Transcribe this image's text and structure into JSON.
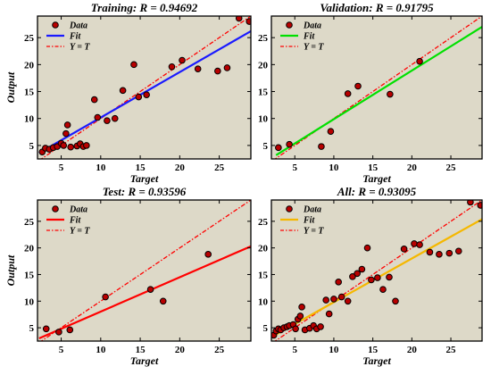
{
  "chart_data": [
    {
      "type": "scatter",
      "title": "Training: R = 0.94692",
      "xlabel": "Target",
      "ylabel": "Output",
      "xlim": [
        2,
        29
      ],
      "ylim": [
        2.5,
        29
      ],
      "xticks": [
        5,
        10,
        15,
        20,
        25
      ],
      "yticks": [
        5,
        10,
        15,
        20,
        25
      ],
      "grid": false,
      "legend_position": "top-left",
      "legend": [
        "Data",
        "Fit",
        "Y = T"
      ],
      "fit_color": "#1a1aff",
      "fit_line": [
        [
          2.2,
          3.6
        ],
        [
          29,
          26.2
        ]
      ],
      "identity_line": [
        [
          2.2,
          2.2
        ],
        [
          29,
          29
        ]
      ],
      "points": [
        [
          2.6,
          3.8
        ],
        [
          3.0,
          4.5
        ],
        [
          3.5,
          4.3
        ],
        [
          4.0,
          4.6
        ],
        [
          4.5,
          4.8
        ],
        [
          5.0,
          5.4
        ],
        [
          5.3,
          5.0
        ],
        [
          5.6,
          7.2
        ],
        [
          5.8,
          8.8
        ],
        [
          6.2,
          4.7
        ],
        [
          7.0,
          4.9
        ],
        [
          7.4,
          5.3
        ],
        [
          7.8,
          4.8
        ],
        [
          8.2,
          5.0
        ],
        [
          9.2,
          13.5
        ],
        [
          9.6,
          10.2
        ],
        [
          10.8,
          9.6
        ],
        [
          11.8,
          10.0
        ],
        [
          12.8,
          15.2
        ],
        [
          14.2,
          20.0
        ],
        [
          14.8,
          14.0
        ],
        [
          15.8,
          14.4
        ],
        [
          19.0,
          19.6
        ],
        [
          20.3,
          20.8
        ],
        [
          22.3,
          19.2
        ],
        [
          24.8,
          18.8
        ],
        [
          26.0,
          19.4
        ],
        [
          27.5,
          28.6
        ],
        [
          28.8,
          28.0
        ]
      ]
    },
    {
      "type": "scatter",
      "title": "Validation: R = 0.91795",
      "xlabel": "Target",
      "ylabel": "",
      "xlim": [
        2,
        29
      ],
      "ylim": [
        2.5,
        29
      ],
      "xticks": [
        5,
        10,
        15,
        20,
        25
      ],
      "yticks": [
        5,
        10,
        15,
        20,
        25
      ],
      "grid": false,
      "legend_position": "top-left",
      "legend": [
        "Data",
        "Fit",
        "Y = T"
      ],
      "fit_color": "#00e000",
      "fit_line": [
        [
          2.6,
          3.2
        ],
        [
          29,
          27.0
        ]
      ],
      "identity_line": [
        [
          2.2,
          2.2
        ],
        [
          29,
          29
        ]
      ],
      "points": [
        [
          2.9,
          4.6
        ],
        [
          4.3,
          5.2
        ],
        [
          8.4,
          4.8
        ],
        [
          9.6,
          7.6
        ],
        [
          11.8,
          14.6
        ],
        [
          13.1,
          16.0
        ],
        [
          17.2,
          14.5
        ],
        [
          21.0,
          20.6
        ]
      ]
    },
    {
      "type": "scatter",
      "title": "Test: R = 0.93596",
      "xlabel": "Target",
      "ylabel": "Output",
      "xlim": [
        2,
        29
      ],
      "ylim": [
        2.5,
        29
      ],
      "xticks": [
        5,
        10,
        15,
        20,
        25
      ],
      "yticks": [
        5,
        10,
        15,
        20,
        25
      ],
      "grid": false,
      "legend_position": "top-left",
      "legend": [
        "Data",
        "Fit",
        "Y = T"
      ],
      "fit_color": "#ff0000",
      "fit_line": [
        [
          2.2,
          3.0
        ],
        [
          29,
          20.3
        ]
      ],
      "identity_line": [
        [
          2.2,
          2.2
        ],
        [
          29,
          29
        ]
      ],
      "points": [
        [
          3.1,
          4.8
        ],
        [
          4.7,
          4.2
        ],
        [
          6.1,
          4.6
        ],
        [
          10.6,
          10.8
        ],
        [
          16.3,
          12.2
        ],
        [
          17.9,
          10.0
        ],
        [
          23.6,
          18.8
        ]
      ]
    },
    {
      "type": "scatter",
      "title": "All: R = 0.93095",
      "xlabel": "Target",
      "ylabel": "",
      "xlim": [
        2,
        29
      ],
      "ylim": [
        2.5,
        29
      ],
      "xticks": [
        5,
        10,
        15,
        20,
        25
      ],
      "yticks": [
        5,
        10,
        15,
        20,
        25
      ],
      "grid": false,
      "legend_position": "top-left",
      "legend": [
        "Data",
        "Fit",
        "Y = T"
      ],
      "fit_color": "#f5b800",
      "fit_line": [
        [
          2.2,
          3.4
        ],
        [
          29,
          25.4
        ]
      ],
      "identity_line": [
        [
          2.2,
          2.2
        ],
        [
          29,
          29
        ]
      ],
      "points": [
        [
          2.3,
          3.6
        ],
        [
          2.6,
          4.4
        ],
        [
          2.9,
          4.8
        ],
        [
          3.2,
          4.6
        ],
        [
          3.6,
          5.0
        ],
        [
          4.0,
          5.2
        ],
        [
          4.3,
          5.4
        ],
        [
          4.8,
          5.6
        ],
        [
          5.1,
          4.8
        ],
        [
          5.4,
          6.6
        ],
        [
          5.7,
          7.2
        ],
        [
          5.9,
          8.9
        ],
        [
          6.3,
          4.6
        ],
        [
          6.9,
          4.9
        ],
        [
          7.4,
          5.4
        ],
        [
          7.8,
          4.8
        ],
        [
          8.3,
          5.2
        ],
        [
          9.0,
          10.2
        ],
        [
          9.4,
          7.6
        ],
        [
          10.0,
          10.4
        ],
        [
          10.6,
          13.6
        ],
        [
          11.0,
          10.8
        ],
        [
          11.8,
          10.0
        ],
        [
          12.4,
          14.6
        ],
        [
          13.0,
          15.2
        ],
        [
          13.6,
          16.0
        ],
        [
          14.3,
          20.0
        ],
        [
          14.8,
          14.0
        ],
        [
          15.6,
          14.4
        ],
        [
          16.3,
          12.2
        ],
        [
          17.1,
          14.5
        ],
        [
          17.9,
          10.0
        ],
        [
          19.0,
          19.8
        ],
        [
          20.3,
          20.8
        ],
        [
          21.0,
          20.6
        ],
        [
          22.3,
          19.2
        ],
        [
          23.5,
          18.8
        ],
        [
          24.8,
          19.0
        ],
        [
          26.0,
          19.4
        ],
        [
          27.5,
          28.6
        ],
        [
          28.8,
          28.0
        ]
      ]
    }
  ]
}
